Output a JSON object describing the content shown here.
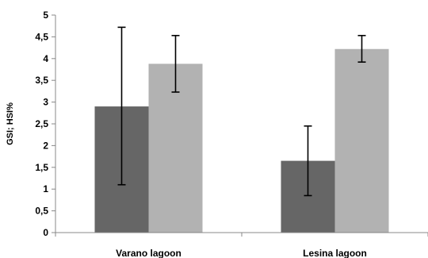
{
  "chart_data": {
    "type": "bar",
    "title": "",
    "xlabel": "",
    "ylabel": "GSI; HSI%",
    "categories": [
      "Varano lagoon",
      "Lesina lagoon"
    ],
    "series": [
      {
        "color": "#666666",
        "values": [
          2.9,
          1.65
        ],
        "error_low": [
          1.1,
          0.85
        ],
        "error_high": [
          4.72,
          2.45
        ]
      },
      {
        "color": "#b2b2b2",
        "values": [
          3.88,
          4.22
        ],
        "error_low": [
          3.23,
          3.92
        ],
        "error_high": [
          4.53,
          4.53
        ]
      }
    ],
    "ylim": [
      0,
      5
    ],
    "yticks": [
      "0",
      "0,5",
      "1",
      "1,5",
      "2",
      "2,5",
      "3",
      "3,5",
      "4",
      "4,5",
      "5"
    ],
    "grid": false,
    "legend": "none"
  }
}
